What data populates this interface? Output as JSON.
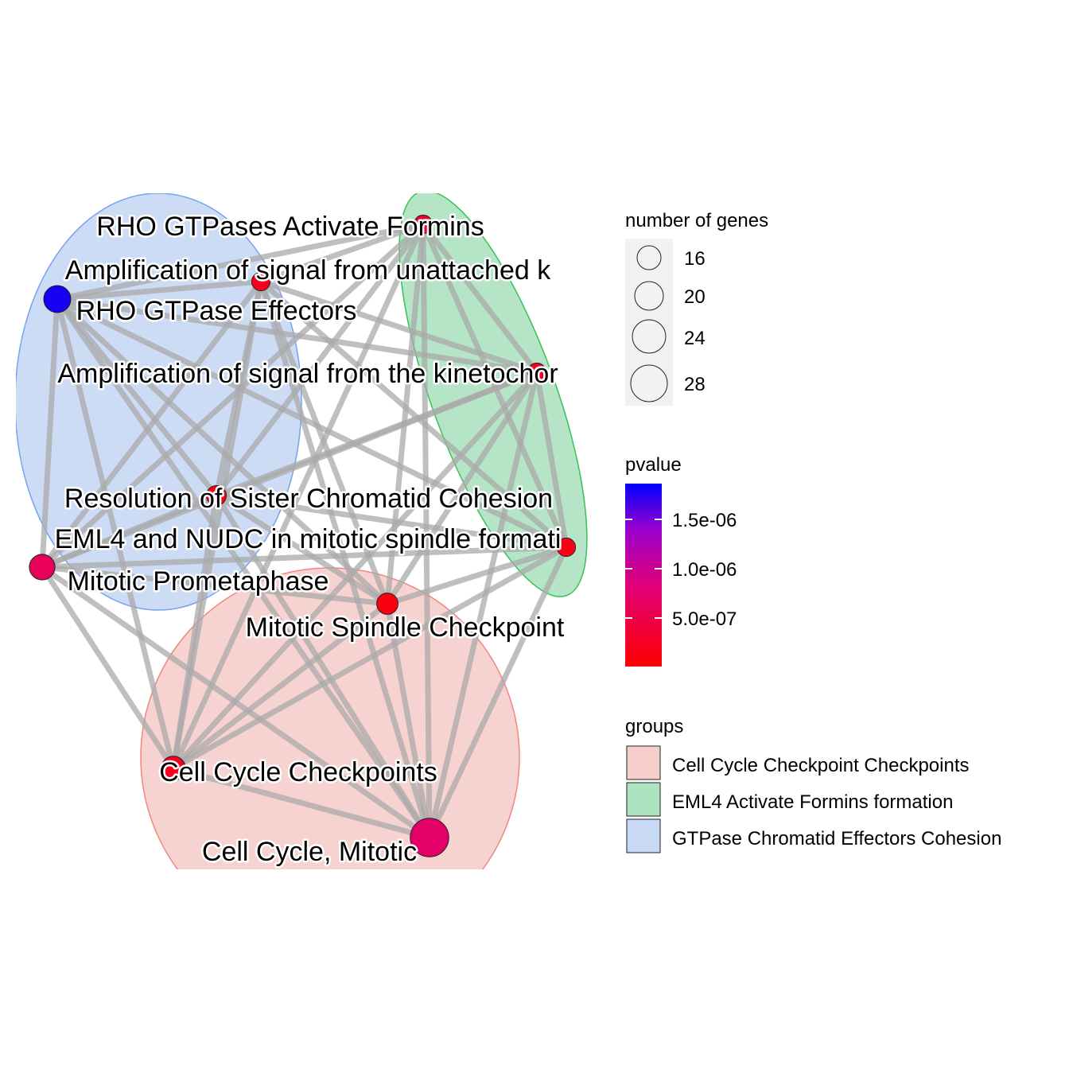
{
  "network": {
    "groups": [
      {
        "name": "GTPase Chromatid Effectors Cohesion",
        "fill": "#c8d9f5",
        "stroke": "#6699ee"
      },
      {
        "name": "EML4 Activate Formins formation",
        "fill": "#aee3c0",
        "stroke": "#22bb44"
      },
      {
        "name": "Cell Cycle Checkpoint Checkpoints",
        "fill": "#f6cfcb",
        "stroke": "#f07a70"
      }
    ],
    "nodes": [
      {
        "id": "rho_formins",
        "label": "RHO GTPases Activate Formins",
        "genes": 16,
        "pvalue": 3e-07
      },
      {
        "id": "amp_unattached",
        "label": "Amplification  of signal from unattached  k",
        "genes": 16,
        "pvalue": 2e-07
      },
      {
        "id": "rho_effectors",
        "label": "RHO GTPase Effectors",
        "genes": 22,
        "pvalue": 1.7e-06
      },
      {
        "id": "amp_kinetochore",
        "label": "Amplification of signal from the kinetochor",
        "genes": 16,
        "pvalue": 2e-07
      },
      {
        "id": "resolution",
        "label": "Resolution of Sister Chromatid Cohesion",
        "genes": 17,
        "pvalue": 1e-07
      },
      {
        "id": "eml4",
        "label": "EML4 and NUDC in mitotic spindle formati",
        "genes": 16,
        "pvalue": 1.5e-07
      },
      {
        "id": "prometaphase",
        "label": "Mitotic Prometaphase",
        "genes": 21,
        "pvalue": 6e-07
      },
      {
        "id": "spindle_checkpoint",
        "label": "Mitotic Spindle Checkpoint",
        "genes": 18,
        "pvalue": 1e-07
      },
      {
        "id": "cc_checkpoints",
        "label": "Cell Cycle Checkpoints",
        "genes": 20,
        "pvalue": 2e-07
      },
      {
        "id": "cc_mitotic",
        "label": "Cell Cycle, Mitotic",
        "genes": 30,
        "pvalue": 7e-07
      }
    ],
    "edges": [
      [
        "rho_formins",
        "amp_unattached"
      ],
      [
        "rho_formins",
        "rho_effectors"
      ],
      [
        "rho_formins",
        "amp_kinetochore"
      ],
      [
        "rho_formins",
        "resolution"
      ],
      [
        "rho_formins",
        "eml4"
      ],
      [
        "rho_formins",
        "spindle_checkpoint"
      ],
      [
        "rho_formins",
        "cc_checkpoints"
      ],
      [
        "rho_formins",
        "cc_mitotic"
      ],
      [
        "rho_formins",
        "prometaphase"
      ],
      [
        "amp_unattached",
        "rho_effectors"
      ],
      [
        "amp_unattached",
        "amp_kinetochore"
      ],
      [
        "amp_unattached",
        "resolution"
      ],
      [
        "amp_unattached",
        "eml4"
      ],
      [
        "amp_unattached",
        "spindle_checkpoint"
      ],
      [
        "amp_unattached",
        "cc_checkpoints"
      ],
      [
        "amp_unattached",
        "cc_mitotic"
      ],
      [
        "amp_unattached",
        "prometaphase"
      ],
      [
        "rho_effectors",
        "amp_kinetochore"
      ],
      [
        "rho_effectors",
        "resolution"
      ],
      [
        "rho_effectors",
        "spindle_checkpoint"
      ],
      [
        "rho_effectors",
        "cc_checkpoints"
      ],
      [
        "rho_effectors",
        "cc_mitotic"
      ],
      [
        "rho_effectors",
        "prometaphase"
      ],
      [
        "rho_effectors",
        "eml4"
      ],
      [
        "amp_kinetochore",
        "resolution"
      ],
      [
        "amp_kinetochore",
        "eml4"
      ],
      [
        "amp_kinetochore",
        "spindle_checkpoint"
      ],
      [
        "amp_kinetochore",
        "cc_checkpoints"
      ],
      [
        "amp_kinetochore",
        "cc_mitotic"
      ],
      [
        "amp_kinetochore",
        "prometaphase"
      ],
      [
        "resolution",
        "eml4"
      ],
      [
        "resolution",
        "spindle_checkpoint"
      ],
      [
        "resolution",
        "cc_checkpoints"
      ],
      [
        "resolution",
        "cc_mitotic"
      ],
      [
        "resolution",
        "prometaphase"
      ],
      [
        "eml4",
        "spindle_checkpoint"
      ],
      [
        "eml4",
        "cc_checkpoints"
      ],
      [
        "eml4",
        "cc_mitotic"
      ],
      [
        "eml4",
        "prometaphase"
      ],
      [
        "prometaphase",
        "spindle_checkpoint"
      ],
      [
        "prometaphase",
        "cc_checkpoints"
      ],
      [
        "prometaphase",
        "cc_mitotic"
      ],
      [
        "spindle_checkpoint",
        "cc_checkpoints"
      ],
      [
        "spindle_checkpoint",
        "cc_mitotic"
      ],
      [
        "cc_checkpoints",
        "cc_mitotic"
      ]
    ]
  },
  "legend": {
    "size_title": "number of genes",
    "size_items": [
      "16",
      "20",
      "24",
      "28"
    ],
    "pvalue_title": "pvalue",
    "pvalue_ticks": [
      "1.5e-06",
      "1.0e-06",
      "5.0e-07"
    ],
    "pvalue_colors": {
      "low": "#ff0000",
      "mid": "#e0007a",
      "high": "#0000ff"
    },
    "groups_title": "groups",
    "groups_items": [
      {
        "label": "Cell Cycle Checkpoint Checkpoints",
        "fill": "#f6cfcb"
      },
      {
        "label": "EML4 Activate Formins formation",
        "fill": "#aee3c0"
      },
      {
        "label": "GTPase Chromatid Effectors Cohesion",
        "fill": "#c8d9f5"
      }
    ]
  }
}
